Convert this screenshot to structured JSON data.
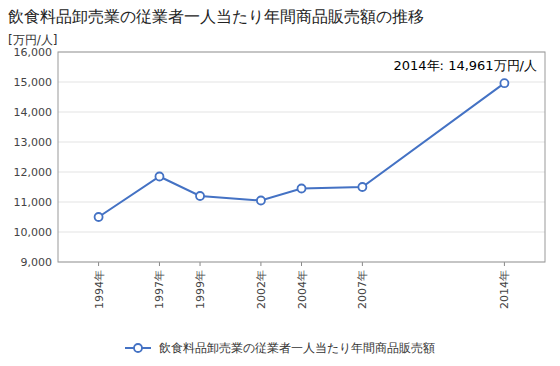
{
  "chart_data": {
    "type": "line",
    "title": "飲食料品卸売業の従業者一人当たり年間商品販売額の推移",
    "ylabel": "[万円/人]",
    "annotation": "2014年: 14,961万円/人",
    "x": [
      1994,
      1997,
      1999,
      2002,
      2004,
      2007,
      2014
    ],
    "series": [
      {
        "name": "飲食料品卸売業の従業者一人当たり年間商品販売額",
        "color": "#4472C4",
        "marker": "circle",
        "values": [
          10500,
          11850,
          11200,
          11050,
          11450,
          11500,
          14961
        ]
      }
    ],
    "xlim": [
      1992,
      2016
    ],
    "xticks": [
      {
        "value": 1994,
        "label": "1994年"
      },
      {
        "value": 1997,
        "label": "1997年"
      },
      {
        "value": 1999,
        "label": "1999年"
      },
      {
        "value": 2002,
        "label": "2002年"
      },
      {
        "value": 2004,
        "label": "2004年"
      },
      {
        "value": 2007,
        "label": "2007年"
      },
      {
        "value": 2014,
        "label": "2014年"
      }
    ],
    "ylim": [
      9000,
      16000
    ],
    "yticks": [
      {
        "value": 9000,
        "label": "9,000"
      },
      {
        "value": 10000,
        "label": "10,000"
      },
      {
        "value": 11000,
        "label": "11,000"
      },
      {
        "value": 12000,
        "label": "12,000"
      },
      {
        "value": 13000,
        "label": "13,000"
      },
      {
        "value": 14000,
        "label": "14,000"
      },
      {
        "value": 15000,
        "label": "15,000"
      },
      {
        "value": 16000,
        "label": "16,000"
      }
    ],
    "grid": true,
    "legend": "bottom"
  }
}
